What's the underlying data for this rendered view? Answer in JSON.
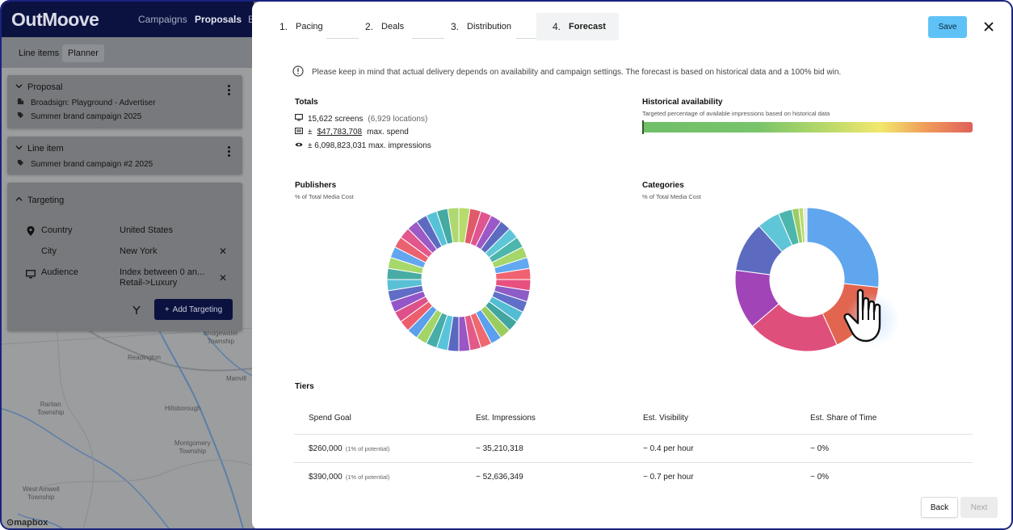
{
  "app": {
    "logo": "OutMoove",
    "nav": {
      "campaigns": "Campaigns",
      "proposals": "Proposals",
      "more": "E"
    },
    "subtabs": {
      "line_items": "Line items",
      "planner": "Planner"
    },
    "proposal_card": {
      "title": "Proposal",
      "advertiser": "Broadsign: Playground - Advertiser",
      "campaign": "Summer brand campaign 2025"
    },
    "line_item_card": {
      "title": "Line item",
      "campaign": "Summer brand campaign #2 2025"
    },
    "targeting_card": {
      "title": "Targeting",
      "rows": [
        {
          "label": "Country",
          "value": "United States"
        },
        {
          "label": "City",
          "value": "New York"
        },
        {
          "label": "Audience",
          "value": "Index between 0 an...",
          "value2": "Retail->Luxury"
        }
      ],
      "add_button": "Add Targeting"
    },
    "map_labels": {
      "bridgewater": "Bridgewater",
      "township": "Township",
      "readington": "Readington",
      "manville": "Manvill",
      "raritan": "Raritan",
      "raritan2": "Township",
      "hillsborough": "Hillsborough",
      "montgomery": "Montgomery",
      "montgomery2": "Township",
      "westamwell": "West Amwell",
      "westamwell2": "Township",
      "mapbox": "mapbox"
    }
  },
  "modal": {
    "steps": [
      {
        "num": "1.",
        "label": "Pacing"
      },
      {
        "num": "2.",
        "label": "Deals"
      },
      {
        "num": "3.",
        "label": "Distribution"
      },
      {
        "num": "4.",
        "label": "Forecast"
      }
    ],
    "save_label": "Save",
    "notice": "Please keep in mind that actual delivery depends on availability and campaign settings. The forecast is based on historical data and a 100% bid win.",
    "totals": {
      "title": "Totals",
      "screens": "15,622 screens",
      "locations": "(6,929 locations)",
      "spend_prefix": "±",
      "spend_value": "$47,783,708",
      "spend_suffix": "max. spend",
      "impressions": "± 6,098,823,031 max. impressions"
    },
    "availability": {
      "title": "Historical availability",
      "subtitle": "Targeted percentage of available impressions based on historical data",
      "level": 0.005
    },
    "publishers": {
      "title": "Publishers",
      "subtitle": "% of Total Media Cost"
    },
    "categories": {
      "title": "Categories",
      "subtitle": "% of Total Media Cost"
    },
    "tiers": {
      "title": "Tiers",
      "headers": [
        "Spend Goal",
        "Est. Impressions",
        "Est. Visibility",
        "Est. Share of Time"
      ],
      "rows": [
        {
          "spend": "$260,000",
          "hint": "(1% of potential)",
          "impressions": "~ 35,210,318",
          "visibility": "~ 0.4 per hour",
          "share": "~ 0%"
        },
        {
          "spend": "$390,000",
          "hint": "(1% of potential)",
          "impressions": "~ 52,636,349",
          "visibility": "~ 0.7 per hour",
          "share": "~ 0%"
        }
      ]
    },
    "back_label": "Back",
    "next_label": "Next"
  },
  "chart_data": [
    {
      "type": "pie",
      "title": "Publishers",
      "subtitle": "% of Total Media Cost",
      "values": [
        2.5,
        2.5,
        2.5,
        2.5,
        2.5,
        2.5,
        2.5,
        2.5,
        2.5,
        2.5,
        2.5,
        2.5,
        2.5,
        2.5,
        2.5,
        2.5,
        2.5,
        2.5,
        2.5,
        2.5,
        2.5,
        2.5,
        2.5,
        2.5,
        2.5,
        2.5,
        2.5,
        2.5,
        2.5,
        2.5,
        2.5,
        2.5,
        2.5,
        2.5,
        2.5,
        2.5,
        2.5,
        2.5,
        2.5,
        2.5
      ],
      "colors": [
        "#b8dc6b",
        "#e05a6a",
        "#e0558f",
        "#9b59c8",
        "#5c6bc0",
        "#5fc6d8",
        "#4db6ac",
        "#a5d66a",
        "#61a8f0",
        "#f06272",
        "#e85080",
        "#8e5cc6",
        "#6070c8",
        "#52bdd4",
        "#43a5a0",
        "#9acd5e",
        "#5ba0ee",
        "#ee6a70",
        "#e35a88",
        "#9a56c4",
        "#5b68c0",
        "#58c4da",
        "#46ada8",
        "#a2d468",
        "#5c9fea",
        "#ec5e6c",
        "#de508a",
        "#9455c8",
        "#606cc6",
        "#5ac0d6",
        "#48aca4",
        "#a7d86c",
        "#62a6f0",
        "#ea6270",
        "#e2578c",
        "#9c5ac6",
        "#5e6ac2",
        "#56c2d8",
        "#44aaa2",
        "#b0d870"
      ]
    },
    {
      "type": "pie",
      "title": "Categories",
      "subtitle": "% of Total Media Cost",
      "values": [
        26,
        16,
        20,
        13,
        11,
        5,
        3,
        1.5,
        1,
        0.8
      ],
      "colors": [
        "#5fa6ee",
        "#e2654f",
        "#df4f7c",
        "#a044b8",
        "#5c6bc0",
        "#5fc6d8",
        "#4db6ac",
        "#9ccc65",
        "#b8dc6b",
        "#e8e8e8"
      ]
    }
  ]
}
